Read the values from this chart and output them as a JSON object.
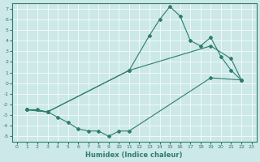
{
  "xlabel": "Humidex (Indice chaleur)",
  "bg_color": "#cce8e8",
  "line_color": "#2e7d6e",
  "xlim": [
    -0.5,
    23.5
  ],
  "ylim": [
    -5.5,
    7.5
  ],
  "xticks": [
    0,
    1,
    2,
    3,
    4,
    5,
    6,
    7,
    8,
    9,
    10,
    11,
    12,
    13,
    14,
    15,
    16,
    17,
    18,
    19,
    20,
    21,
    22,
    23
  ],
  "yticks": [
    -5,
    -4,
    -3,
    -2,
    -1,
    0,
    1,
    2,
    3,
    4,
    5,
    6,
    7
  ],
  "line1_x": [
    1,
    2,
    3,
    11,
    13,
    14,
    15,
    16,
    17,
    18,
    19,
    20,
    21,
    22
  ],
  "line1_y": [
    -2.5,
    -2.5,
    -2.7,
    1.2,
    4.5,
    6.0,
    7.2,
    6.3,
    4.0,
    3.5,
    4.3,
    2.5,
    1.2,
    0.3
  ],
  "line2_x": [
    1,
    3,
    11,
    19,
    21,
    22
  ],
  "line2_y": [
    -2.5,
    -2.7,
    1.2,
    3.5,
    2.3,
    0.3
  ],
  "line3_x": [
    1,
    3,
    4,
    5,
    6,
    7,
    8,
    9,
    10,
    11,
    19,
    22
  ],
  "line3_y": [
    -2.5,
    -2.7,
    -3.2,
    -3.7,
    -4.3,
    -4.5,
    -4.5,
    -5.0,
    -4.5,
    -4.5,
    0.5,
    0.3
  ]
}
